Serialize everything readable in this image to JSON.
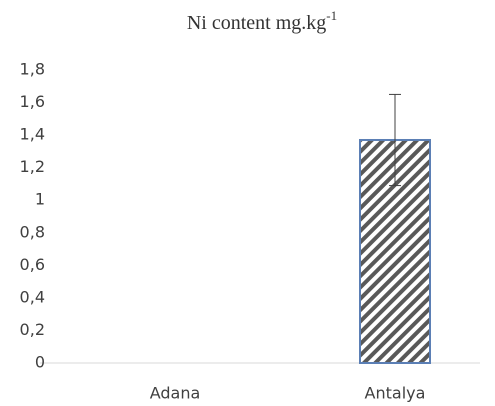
{
  "chart_data": {
    "type": "bar",
    "title": {
      "text": "Ni content mg.kg",
      "superscript": "-1"
    },
    "categories": [
      "Adana",
      "Antalya"
    ],
    "values": [
      0,
      1.37
    ],
    "errors": [
      null,
      0.28
    ],
    "color": "#5b7fb5",
    "hatch_color": "#595959",
    "ylim": [
      0,
      1.8
    ],
    "yticks": [
      0,
      {
        "value": 0.2,
        "label": "0,2"
      },
      {
        "value": 0.4,
        "label": "0,4"
      },
      {
        "value": 0.6,
        "label": "0,6"
      },
      {
        "value": 0.8,
        "label": "0,8"
      },
      1,
      {
        "value": 1.2,
        "label": "1,2"
      },
      {
        "value": 1.4,
        "label": "1,4"
      },
      {
        "value": 1.6,
        "label": "1,6"
      },
      {
        "value": 1.8,
        "label": "1,8"
      }
    ],
    "grid": false
  }
}
